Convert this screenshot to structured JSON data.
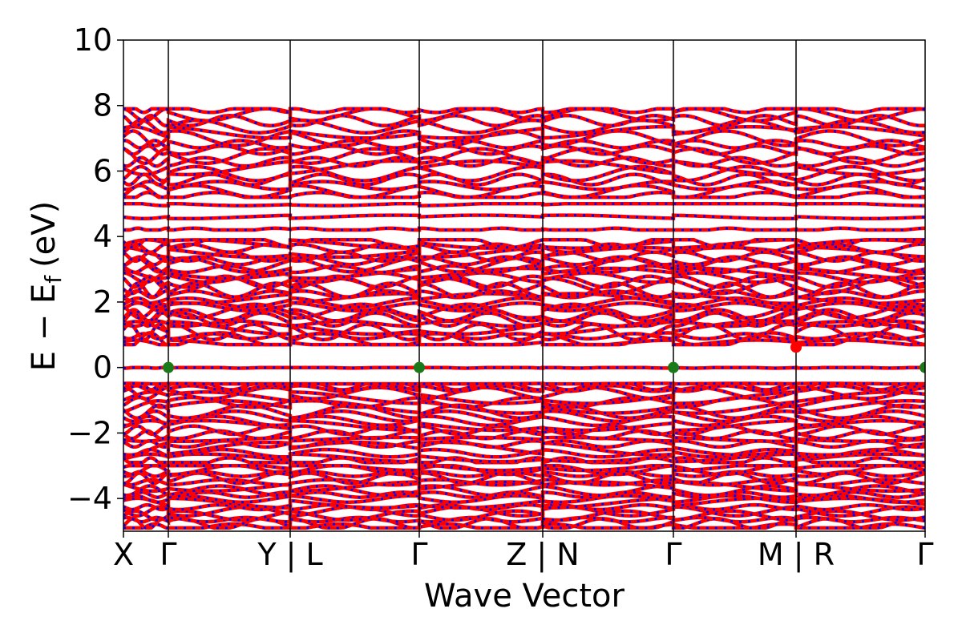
{
  "chart_data": {
    "type": "line",
    "title": "",
    "xlabel": "Wave Vector",
    "ylabel": "E − E",
    "ylabel_subscript": "f",
    "ylabel_unit": "(eV)",
    "ylim": [
      -5,
      10
    ],
    "yticks": [
      -4,
      -2,
      0,
      2,
      4,
      6,
      8,
      10
    ],
    "ytick_labels": [
      "−4",
      "−2",
      "0",
      "2",
      "4",
      "6",
      "8",
      "10"
    ],
    "xlim": [
      0,
      1
    ],
    "high_symmetry_points": [
      {
        "label": "X",
        "x": 0.0
      },
      {
        "label": "Γ",
        "x": 0.056
      },
      {
        "label": "Y | L",
        "x": 0.208
      },
      {
        "label": "Γ",
        "x": 0.369
      },
      {
        "label": "Z | N",
        "x": 0.523
      },
      {
        "label": "Γ",
        "x": 0.686
      },
      {
        "label": "M | R",
        "x": 0.839
      },
      {
        "label": "Γ",
        "x": 1.0
      }
    ],
    "series": [
      {
        "name": "",
        "color": "#ff0000",
        "style": "solid",
        "role": "spin-up bands"
      },
      {
        "name": "",
        "color": "#0000ff",
        "style": "dotted",
        "role": "spin-down bands"
      }
    ],
    "valence_band_maximum": [
      {
        "x": 0.056,
        "y": 0.0
      },
      {
        "x": 0.369,
        "y": 0.0
      },
      {
        "x": 0.686,
        "y": 0.0
      },
      {
        "x": 1.0,
        "y": 0.0
      }
    ],
    "conduction_band_minimum": [
      {
        "x": 0.839,
        "y": 0.62
      }
    ],
    "marker_colors": {
      "vbm": "#1a7a1a",
      "cbm": "#ff0000"
    },
    "band_groups": [
      {
        "range": [
          -4.9,
          -3.0
        ],
        "count": 16
      },
      {
        "range": [
          -2.9,
          -0.5
        ],
        "count": 18
      },
      {
        "range": [
          -0.5,
          0.0
        ],
        "count": 2
      },
      {
        "range": [
          0.7,
          3.9
        ],
        "count": 26
      },
      {
        "range": [
          4.2,
          5.0
        ],
        "count": 3
      },
      {
        "range": [
          5.2,
          7.9
        ],
        "count": 16
      }
    ],
    "grid": false
  }
}
